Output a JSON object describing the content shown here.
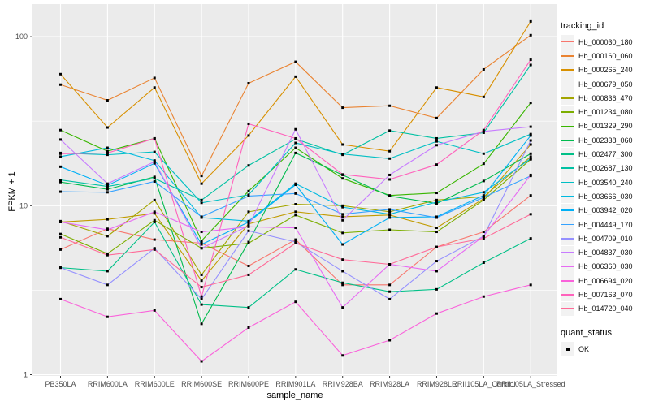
{
  "chart_data": {
    "type": "line",
    "title": "",
    "xlabel": "sample_name",
    "ylabel": "FPKM + 1",
    "y_scale": "log10",
    "ylim": [
      1,
      130
    ],
    "y_ticks": [
      "1",
      "10",
      "100"
    ],
    "grid": true,
    "legend_position": "right",
    "point_shape": "filled-black-square",
    "categories": [
      "PB350LA",
      "RRIM600LA",
      "RRIM600LE",
      "RRIM600SE",
      "RRIM600PE",
      "RRIM901LA",
      "RRIM928BA",
      "RRIM928LA",
      "RRIM928LE",
      "RRII105LA_Control",
      "RRII105LA_Stressed"
    ],
    "series": [
      {
        "name": "Hb_000030_180",
        "color": "#F8766D",
        "values": [
          5.5,
          7.3,
          6.3,
          6.0,
          4.4,
          6.3,
          3.4,
          3.4,
          5.7,
          7.0,
          11.5
        ]
      },
      {
        "name": "Hb_000160_060",
        "color": "#EA8331",
        "values": [
          52,
          42,
          57,
          15,
          53,
          71,
          38,
          39,
          33,
          64,
          102
        ]
      },
      {
        "name": "Hb_000265_240",
        "color": "#D89000",
        "values": [
          60,
          29,
          50,
          13.5,
          26,
          58,
          23,
          21,
          50,
          44,
          123
        ]
      },
      {
        "name": "Hb_000679_050",
        "color": "#C09B00",
        "values": [
          8.0,
          8.3,
          9.0,
          3.6,
          7.8,
          9.2,
          8.6,
          8.8,
          7.4,
          11.0,
          23
        ]
      },
      {
        "name": "Hb_000836_470",
        "color": "#A3A500",
        "values": [
          8.1,
          6.6,
          10.8,
          3.9,
          9.2,
          10.2,
          10.0,
          9.2,
          10.8,
          11.3,
          19.5
        ]
      },
      {
        "name": "Hb_001234_080",
        "color": "#7CAE00",
        "values": [
          6.8,
          5.2,
          8.2,
          5.6,
          6.0,
          8.8,
          6.9,
          7.2,
          7.0,
          10.8,
          18.8
        ]
      },
      {
        "name": "Hb_001329_290",
        "color": "#39B600",
        "values": [
          28,
          21,
          25,
          6.2,
          12.2,
          22,
          14.5,
          11.5,
          11.9,
          17.7,
          40.6
        ]
      },
      {
        "name": "Hb_002338_060",
        "color": "#00BB4E",
        "values": [
          13.8,
          12.5,
          14.8,
          2.0,
          6.1,
          20.5,
          15.2,
          11.4,
          10.3,
          14.0,
          20.3
        ]
      },
      {
        "name": "Hb_002477_300",
        "color": "#00C087",
        "values": [
          4.3,
          4.1,
          8.0,
          2.6,
          2.5,
          4.2,
          3.5,
          3.1,
          3.2,
          4.6,
          6.4
        ]
      },
      {
        "name": "Hb_002687_130",
        "color": "#00C1A3",
        "values": [
          14.2,
          13.0,
          14.5,
          10.8,
          17.3,
          24.8,
          20.0,
          27.8,
          25.0,
          27.0,
          68
        ]
      },
      {
        "name": "Hb_003540_240",
        "color": "#00BFC4",
        "values": [
          20.5,
          20.0,
          20.8,
          10.4,
          11.6,
          23.5,
          20.2,
          19.0,
          24.0,
          20.3,
          26.5
        ]
      },
      {
        "name": "Hb_003666_030",
        "color": "#00BAE0",
        "values": [
          19.5,
          22.0,
          18.5,
          8.5,
          8.1,
          13.5,
          9.8,
          8.9,
          10.5,
          12.0,
          19.0
        ]
      },
      {
        "name": "Hb_003942_020",
        "color": "#00B0F6",
        "values": [
          17.0,
          13.2,
          17.8,
          5.9,
          8.0,
          13.3,
          5.9,
          8.5,
          8.6,
          11.5,
          26.0
        ]
      },
      {
        "name": "Hb_004449_170",
        "color": "#35A2FF",
        "values": [
          12.1,
          12.0,
          13.9,
          8.6,
          11.4,
          11.8,
          8.9,
          9.5,
          8.5,
          11.2,
          15.0
        ]
      },
      {
        "name": "Hb_004709_010",
        "color": "#9590FF",
        "values": [
          4.3,
          3.4,
          5.6,
          2.8,
          7.1,
          6.1,
          4.1,
          2.8,
          4.7,
          6.6,
          24.3
        ]
      },
      {
        "name": "Hb_004837_030",
        "color": "#C77CFF",
        "values": [
          24.6,
          13.5,
          18.2,
          5.6,
          7.6,
          28.3,
          8.2,
          15.2,
          22.8,
          27.5,
          29.3
        ]
      },
      {
        "name": "Hb_006360_030",
        "color": "#E76BF3",
        "values": [
          8.0,
          7.2,
          9.2,
          7.0,
          7.5,
          7.4,
          2.5,
          4.5,
          4.1,
          6.6,
          15.2
        ]
      },
      {
        "name": "Hb_006694_020",
        "color": "#FA62DB",
        "values": [
          2.8,
          2.2,
          2.4,
          1.2,
          1.9,
          2.7,
          1.3,
          1.6,
          2.3,
          2.9,
          3.4
        ]
      },
      {
        "name": "Hb_007163_070",
        "color": "#FF62BC",
        "values": [
          20.3,
          20.5,
          25.0,
          2.9,
          30.5,
          25.0,
          15.3,
          14.3,
          17.5,
          28.0,
          73
        ]
      },
      {
        "name": "Hb_014720_040",
        "color": "#FF6A98",
        "values": [
          6.5,
          5.1,
          5.5,
          3.3,
          3.9,
          6.0,
          4.8,
          4.5,
          5.7,
          6.4,
          8.9
        ]
      }
    ]
  },
  "legend": {
    "tracking_title": "tracking_id",
    "quant_title": "quant_status",
    "quant_items": [
      "OK"
    ]
  },
  "colors": {
    "panel_bg": "#EBEBEB",
    "grid": "#FFFFFF",
    "tick_label": "#4D4D4D",
    "tick_mark": "#333333",
    "point": "#000000",
    "legend_key_bg": "#F2F2F2",
    "background": "#FFFFFF"
  }
}
